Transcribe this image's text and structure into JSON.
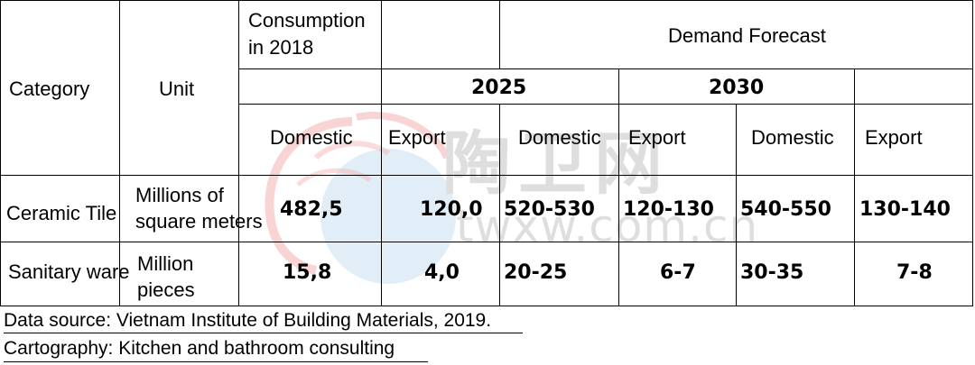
{
  "header": {
    "category": "Category",
    "unit": "Unit",
    "consumption_line1": "Consumption",
    "consumption_line2": "in 2018",
    "demand_forecast": "Demand Forecast",
    "year_2025": "2025",
    "year_2030": "2030",
    "col_domestic_2018": "Domestic",
    "col_export_2018": "Export",
    "col_domestic_2025": "Domestic",
    "col_export_2025": "Export",
    "col_domestic_2030": "Domestic",
    "col_export_2030": "Export"
  },
  "rows": [
    {
      "category": "Ceramic Tile",
      "unit_line1": "Millions of",
      "unit_line2": "square meters",
      "domestic_2018": "482,5",
      "export_2018": "120,0",
      "domestic_2025": "520-530",
      "export_2025": "120-130",
      "domestic_2030": "540-550",
      "export_2030": "130-140"
    },
    {
      "category": "Sanitary ware",
      "unit_line1": "Million",
      "unit_line2": "pieces",
      "domestic_2018": "15,8",
      "export_2018": "4,0",
      "domestic_2025": "20-25",
      "export_2025": "6-7",
      "domestic_2030": "30-35",
      "export_2030": "7-8"
    }
  ],
  "footer": {
    "source": "Data source: Vietnam Institute of Building Materials, 2019.",
    "cartography": "Cartography: Kitchen and bathroom consulting"
  },
  "watermark": {
    "chinese": "陶卫网",
    "url": "twxw.com.cn"
  }
}
